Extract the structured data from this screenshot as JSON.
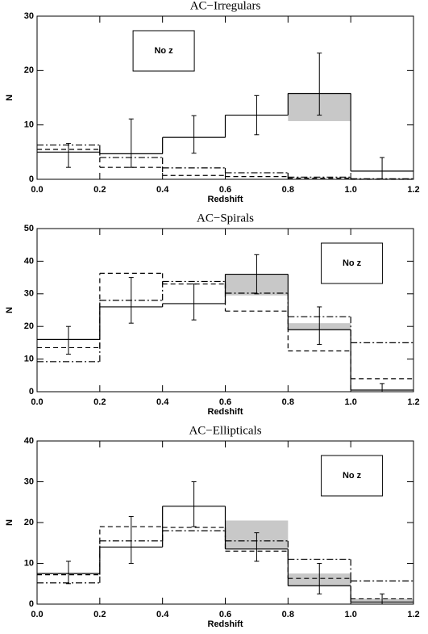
{
  "chart_data": [
    {
      "type": "histogram",
      "title": "AC−Irregulars",
      "xlabel": "Redshift",
      "ylabel": "N",
      "annotation": "No z",
      "annotation_corner": "upper-left",
      "bins": [
        0,
        0.2,
        0.4,
        0.6,
        0.8,
        1.0,
        1.2
      ],
      "xlim": [
        0,
        1.2
      ],
      "xticks": [
        {
          "value": 0,
          "label": "0.0"
        },
        0.2,
        0.4,
        0.6,
        0.8,
        {
          "value": 1,
          "label": "1.0"
        },
        1.2
      ],
      "ylim": [
        0,
        30
      ],
      "yticks": [
        0,
        10,
        20,
        30
      ],
      "grid": false,
      "series": [
        {
          "style": "solid",
          "color": "#000000",
          "values": [
            5,
            4.7,
            7.7,
            11.8,
            15.8,
            1.5
          ]
        },
        {
          "style": "dashed",
          "color": "#000000",
          "values": [
            5.5,
            2.2,
            0.7,
            0.5,
            0.2,
            0
          ]
        },
        {
          "style": "dashdot",
          "color": "#000000",
          "values": [
            6.3,
            4,
            2.1,
            1.2,
            0.4,
            0.1
          ]
        }
      ],
      "shaded": {
        "color": "#c8c8c8",
        "low": [
          null,
          null,
          null,
          null,
          10.7,
          null
        ],
        "high": [
          null,
          null,
          null,
          null,
          15.8,
          null
        ]
      },
      "errorbars": {
        "x": [
          0.1,
          0.3,
          0.5,
          0.7,
          0.9,
          1.1
        ],
        "low": [
          2.2,
          2.2,
          4.8,
          8.2,
          11.8,
          0
        ],
        "high": [
          6.6,
          11.1,
          11.7,
          15.4,
          23.2,
          4
        ]
      }
    },
    {
      "type": "histogram",
      "title": "AC−Spirals",
      "xlabel": "Redshift",
      "ylabel": "N",
      "annotation": "No z",
      "annotation_corner": "upper-right",
      "bins": [
        0,
        0.2,
        0.4,
        0.6,
        0.8,
        1.0,
        1.2
      ],
      "xlim": [
        0,
        1.2
      ],
      "xticks": [
        {
          "value": 0,
          "label": "0.0"
        },
        0.2,
        0.4,
        0.6,
        0.8,
        {
          "value": 1,
          "label": "1.0"
        },
        1.2
      ],
      "ylim": [
        0,
        50
      ],
      "yticks": [
        0,
        10,
        20,
        30,
        40,
        50
      ],
      "grid": false,
      "series": [
        {
          "style": "solid",
          "color": "#000000",
          "values": [
            16,
            26,
            27,
            36,
            19,
            0.5
          ]
        },
        {
          "style": "dashed",
          "color": "#000000",
          "values": [
            13.5,
            36.3,
            33,
            24.7,
            12.5,
            4
          ]
        },
        {
          "style": "dashdot",
          "color": "#000000",
          "values": [
            9.2,
            28,
            33.8,
            30.2,
            23,
            15
          ]
        }
      ],
      "shaded": {
        "color": "#c8c8c8",
        "low": [
          null,
          null,
          null,
          29.5,
          19,
          null
        ],
        "high": [
          null,
          null,
          null,
          36,
          21,
          null
        ]
      },
      "errorbars": {
        "x": [
          0.1,
          0.3,
          0.5,
          0.7,
          0.9,
          1.1
        ],
        "low": [
          11.5,
          21,
          22,
          30,
          14.5,
          0
        ],
        "high": [
          20,
          35,
          33,
          42,
          26,
          2.5
        ]
      }
    },
    {
      "type": "histogram",
      "title": "AC−Ellipticals",
      "xlabel": "Redshift",
      "ylabel": "N",
      "annotation": "No z",
      "annotation_corner": "upper-right",
      "bins": [
        0,
        0.2,
        0.4,
        0.6,
        0.8,
        1.0,
        1.2
      ],
      "xlim": [
        0,
        1.2
      ],
      "xticks": [
        {
          "value": 0,
          "label": "0.0"
        },
        0.2,
        0.4,
        0.6,
        0.8,
        {
          "value": 1,
          "label": "1.0"
        },
        1.2
      ],
      "ylim": [
        0,
        40
      ],
      "yticks": [
        0,
        10,
        20,
        30,
        40
      ],
      "grid": false,
      "series": [
        {
          "style": "solid",
          "color": "#000000",
          "values": [
            7.5,
            14,
            24,
            13.5,
            4.5,
            0.5
          ]
        },
        {
          "style": "dashed",
          "color": "#000000",
          "values": [
            7.2,
            19,
            18.8,
            13,
            6.3,
            1.3
          ]
        },
        {
          "style": "dashdot",
          "color": "#000000",
          "values": [
            5.2,
            15.5,
            18,
            15.5,
            11,
            5.7
          ]
        }
      ],
      "shaded": {
        "color": "#c8c8c8",
        "low": [
          null,
          null,
          null,
          13.5,
          4.5,
          0.5
        ],
        "high": [
          null,
          null,
          null,
          20.5,
          7.5,
          1.3
        ]
      },
      "errorbars": {
        "x": [
          0.1,
          0.3,
          0.5,
          0.7,
          0.9,
          1.1
        ],
        "low": [
          5,
          10,
          19,
          10.5,
          2.5,
          0
        ],
        "high": [
          10.5,
          21.5,
          30,
          17.5,
          10,
          2.5
        ]
      }
    }
  ]
}
